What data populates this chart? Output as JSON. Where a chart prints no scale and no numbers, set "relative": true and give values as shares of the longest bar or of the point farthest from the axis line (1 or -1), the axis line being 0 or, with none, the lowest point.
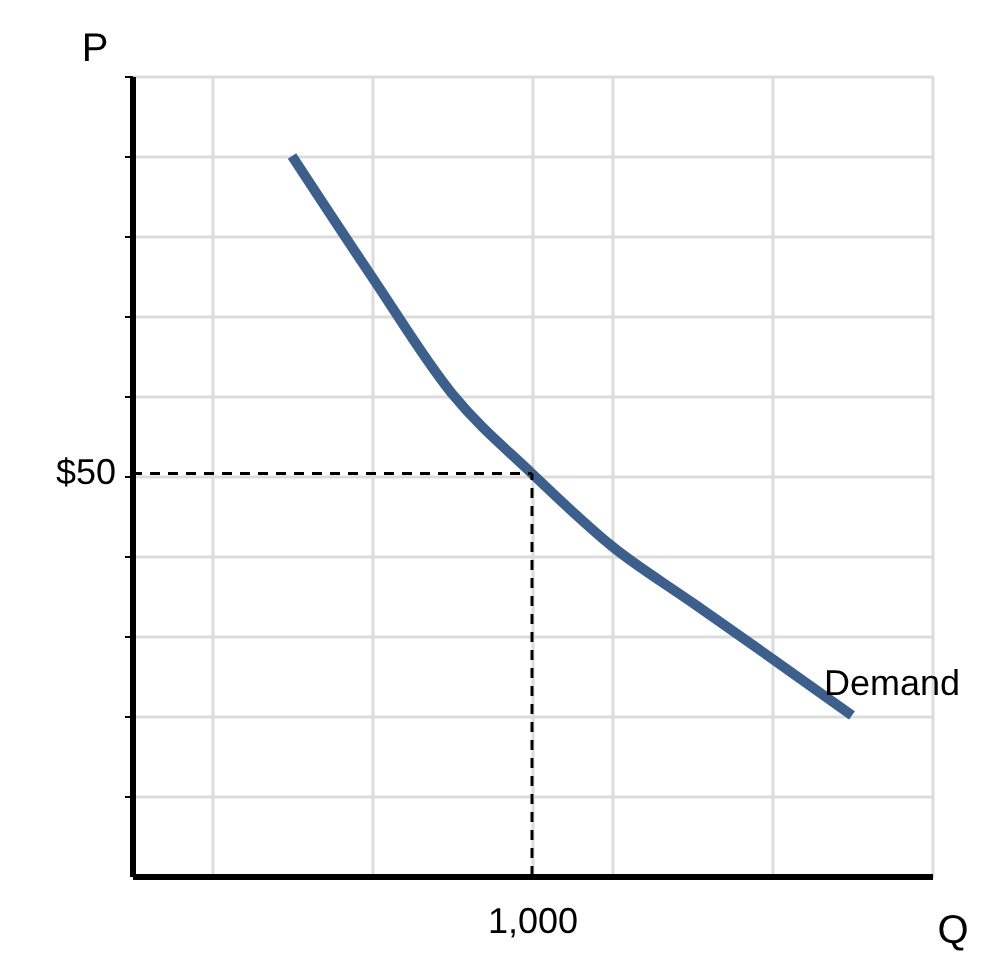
{
  "chart_data": {
    "type": "line",
    "xlabel": "Q",
    "ylabel": "P",
    "relative": true,
    "grid": true,
    "marker": "none",
    "line_style": "solid",
    "categories": [
      null,
      null,
      null,
      null,
      null,
      null,
      null,
      null,
      null,
      null,
      null
    ],
    "series": [
      {
        "name": "Demand",
        "color": "#3c5f8c",
        "values": [
          null,
          null,
          1,
          0.832,
          0.67,
          0.559,
          0.458,
          0.38,
          0.302,
          0.223,
          null
        ]
      }
    ],
    "annotations": [
      "$50",
      "1,000"
    ],
    "ref_lines": [
      {
        "axis": "y",
        "value": 0.559,
        "color": "#000000",
        "line_style": "dashed"
      }
    ]
  }
}
